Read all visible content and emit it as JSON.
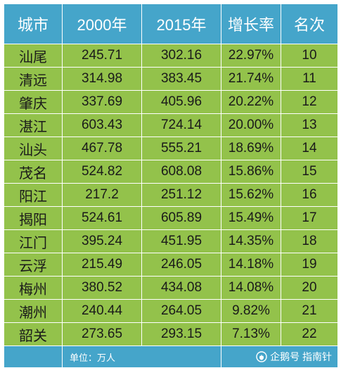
{
  "table": {
    "headers": [
      "城市",
      "2000年",
      "2015年",
      "增长率",
      "名次"
    ],
    "rows": [
      [
        "汕尾",
        "245.71",
        "302.16",
        "22.97%",
        "10"
      ],
      [
        "清远",
        "314.98",
        "383.45",
        "21.74%",
        "11"
      ],
      [
        "肇庆",
        "337.69",
        "405.96",
        "20.22%",
        "12"
      ],
      [
        "湛江",
        "603.43",
        "724.14",
        "20.00%",
        "13"
      ],
      [
        "汕头",
        "467.78",
        "555.21",
        "18.69%",
        "14"
      ],
      [
        "茂名",
        "524.82",
        "608.08",
        "15.86%",
        "15"
      ],
      [
        "阳江",
        "217.2",
        "251.12",
        "15.62%",
        "16"
      ],
      [
        "揭阳",
        "524.61",
        "605.89",
        "15.49%",
        "17"
      ],
      [
        "江门",
        "395.24",
        "451.95",
        "14.35%",
        "18"
      ],
      [
        "云浮",
        "215.49",
        "246.05",
        "14.18%",
        "19"
      ],
      [
        "梅州",
        "380.52",
        "434.08",
        "14.08%",
        "20"
      ],
      [
        "潮州",
        "240.44",
        "264.05",
        "9.82%",
        "21"
      ],
      [
        "韶关",
        "273.65",
        "293.15",
        "7.13%",
        "22"
      ]
    ],
    "footer": {
      "unit_note": "单位：万人",
      "brand": "企鹅号 指南针"
    }
  },
  "colors": {
    "header_bg": "#45a5ca",
    "row_bg": "#93c24b",
    "footer_bg": "#45a5ca",
    "header_text": "#ffffff",
    "cell_text": "#1a1a1a"
  },
  "icons": {
    "brand": "penguin-logo-icon"
  }
}
